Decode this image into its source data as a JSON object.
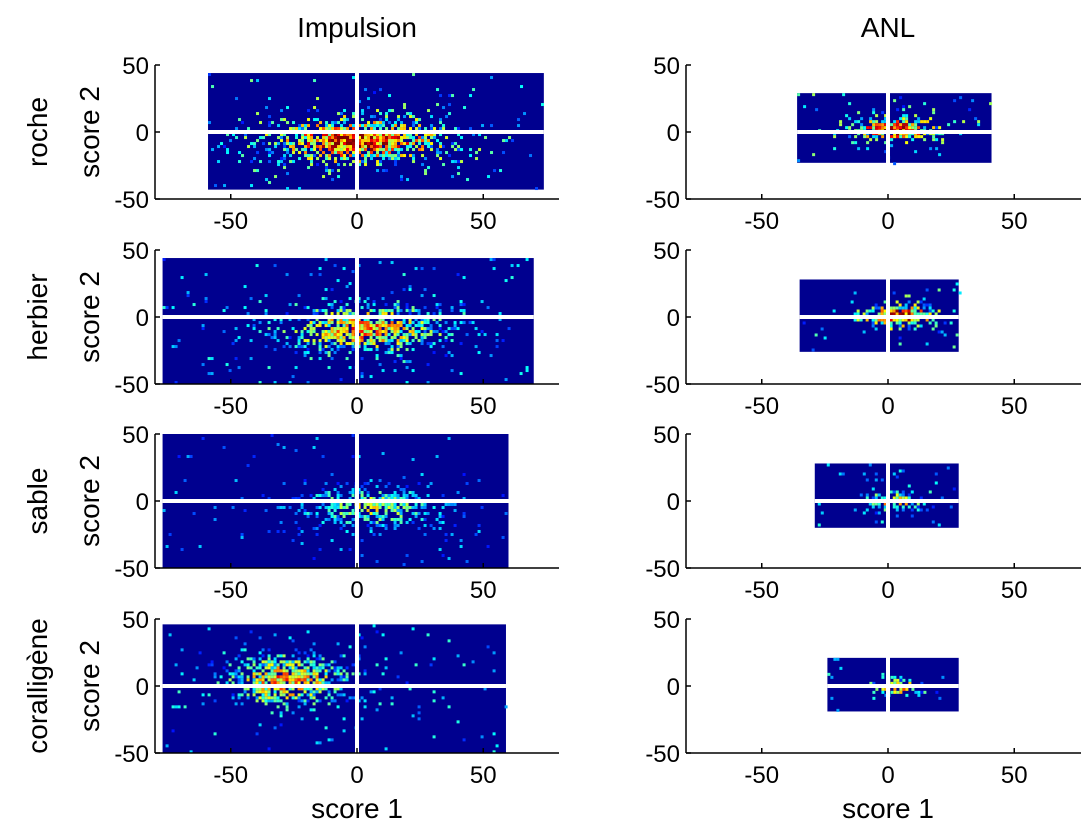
{
  "figure": {
    "column_titles": [
      "Impulsion",
      "ANL"
    ],
    "row_labels": [
      [
        "roche",
        "score 2"
      ],
      [
        "herbier",
        "score 2"
      ],
      [
        "sable",
        "score  2"
      ],
      [
        "coralligène",
        "score 2"
      ]
    ],
    "xlabel": "score 1",
    "colors": {
      "background_bins": "#00008f",
      "axis_lines": "#ffffff",
      "colormap": "jet"
    }
  },
  "chart_data": [
    {
      "type": "heatmap",
      "panel": "roche / Impulsion",
      "xlim": [
        -80,
        80
      ],
      "ylim": [
        -50,
        50
      ],
      "xticks": [
        -50,
        0,
        50
      ],
      "yticks": [
        -50,
        0,
        50
      ],
      "extent_x": [
        -59,
        74
      ],
      "extent_y": [
        -43,
        44
      ],
      "peak": [
        0,
        -5
      ],
      "spread": [
        28,
        14
      ],
      "density": "high",
      "xlabel": "",
      "ylabel": "score 2"
    },
    {
      "type": "heatmap",
      "panel": "roche / ANL",
      "xlim": [
        -80,
        80
      ],
      "ylim": [
        -50,
        50
      ],
      "xticks": [
        -50,
        0,
        50
      ],
      "yticks": [
        -50,
        0,
        50
      ],
      "extent_x": [
        -36,
        41
      ],
      "extent_y": [
        -23,
        29
      ],
      "peak": [
        2,
        3
      ],
      "spread": [
        14,
        7
      ],
      "density": "high",
      "xlabel": "",
      "ylabel": ""
    },
    {
      "type": "heatmap",
      "panel": "herbier / Impulsion",
      "xlim": [
        -80,
        80
      ],
      "ylim": [
        -50,
        50
      ],
      "xticks": [
        -50,
        0,
        50
      ],
      "yticks": [
        -50,
        0,
        50
      ],
      "extent_x": [
        -77,
        70
      ],
      "extent_y": [
        -50,
        44
      ],
      "peak": [
        2,
        -8
      ],
      "spread": [
        27,
        15
      ],
      "density": "medium",
      "xlabel": "",
      "ylabel": "score 2"
    },
    {
      "type": "heatmap",
      "panel": "herbier / ANL",
      "xlim": [
        -80,
        80
      ],
      "ylim": [
        -50,
        50
      ],
      "xticks": [
        -50,
        0,
        50
      ],
      "yticks": [
        -50,
        0,
        50
      ],
      "extent_x": [
        -35,
        28
      ],
      "extent_y": [
        -26,
        28
      ],
      "peak": [
        4,
        2
      ],
      "spread": [
        12,
        7
      ],
      "density": "high",
      "xlabel": "",
      "ylabel": ""
    },
    {
      "type": "heatmap",
      "panel": "sable / Impulsion",
      "xlim": [
        -80,
        80
      ],
      "ylim": [
        -50,
        50
      ],
      "xticks": [
        -50,
        0,
        50
      ],
      "yticks": [
        -50,
        0,
        50
      ],
      "extent_x": [
        -77,
        60
      ],
      "extent_y": [
        -50,
        50
      ],
      "peak": [
        5,
        -3
      ],
      "spread": [
        22,
        13
      ],
      "density": "low",
      "xlabel": "",
      "ylabel": "score  2"
    },
    {
      "type": "heatmap",
      "panel": "sable / ANL",
      "xlim": [
        -80,
        80
      ],
      "ylim": [
        -50,
        50
      ],
      "xticks": [
        -50,
        0,
        50
      ],
      "yticks": [
        -50,
        0,
        50
      ],
      "extent_x": [
        -29,
        28
      ],
      "extent_y": [
        -20,
        28
      ],
      "peak": [
        2,
        1
      ],
      "spread": [
        8,
        6
      ],
      "density": "medium",
      "xlabel": "",
      "ylabel": ""
    },
    {
      "type": "heatmap",
      "panel": "coralligène / Impulsion",
      "xlim": [
        -80,
        80
      ],
      "ylim": [
        -50,
        50
      ],
      "xticks": [
        -50,
        0,
        50
      ],
      "yticks": [
        -50,
        0,
        50
      ],
      "extent_x": [
        -77,
        59
      ],
      "extent_y": [
        -50,
        46
      ],
      "peak": [
        -28,
        5
      ],
      "spread": [
        20,
        15
      ],
      "density": "medium",
      "xlabel": "score 1",
      "ylabel": "score 2"
    },
    {
      "type": "heatmap",
      "panel": "coralligène / ANL",
      "xlim": [
        -80,
        80
      ],
      "ylim": [
        -50,
        50
      ],
      "xticks": [
        -50,
        0,
        50
      ],
      "yticks": [
        -50,
        0,
        50
      ],
      "extent_x": [
        -24,
        28
      ],
      "extent_y": [
        -19,
        21
      ],
      "peak": [
        3,
        0
      ],
      "spread": [
        9,
        5
      ],
      "density": "medium",
      "xlabel": "score 1",
      "ylabel": ""
    }
  ]
}
